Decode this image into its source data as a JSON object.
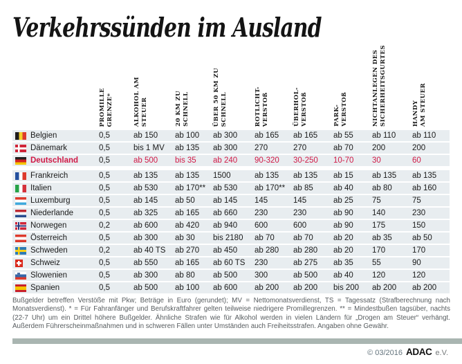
{
  "title": "Verkehrssünden im Ausland",
  "chart_data": {
    "type": "table",
    "columns": [
      [
        "PROMILLE",
        "GRENZE*"
      ],
      [
        "ALKOHOL AM",
        "STEUER"
      ],
      [
        "20 KM ZU",
        "SCHNELL"
      ],
      [
        "ÜBER 50 KM ZU",
        "SCHNELL"
      ],
      [
        "ROTLICHT-",
        "VERSTOß"
      ],
      [
        "ÜBERHOL-",
        "VERSTOß"
      ],
      [
        "PARK-",
        "VERSTOß"
      ],
      [
        "NICHTANLEGEN DES",
        "SICHERHEITSGURTES"
      ],
      [
        "HANDY",
        "AM STEUER"
      ]
    ],
    "rows": [
      {
        "country": "Belgien",
        "flag": "be",
        "highlight": false,
        "values": [
          "0,5",
          "ab 150",
          "ab 100",
          "ab 300",
          "ab 165",
          "ab 165",
          "ab 55",
          "ab 110",
          "ab 110"
        ]
      },
      {
        "country": "Dänemark",
        "flag": "dk",
        "highlight": false,
        "values": [
          "0,5",
          "bis 1 MV",
          "ab 135",
          "ab 300",
          "270",
          "270",
          "ab 70",
          "200",
          "200"
        ]
      },
      {
        "country": "Deutschland",
        "flag": "de",
        "highlight": true,
        "values": [
          "0,5",
          "ab 500",
          "bis 35",
          "ab 240",
          "90-320",
          "30-250",
          "10-70",
          "30",
          "60"
        ]
      },
      {
        "country": "Frankreich",
        "flag": "fr",
        "highlight": false,
        "values": [
          "0,5",
          "ab 135",
          "ab 135",
          "1500",
          "ab 135",
          "ab 135",
          "ab 15",
          "ab 135",
          "ab 135"
        ]
      },
      {
        "country": "Italien",
        "flag": "it",
        "highlight": false,
        "values": [
          "0,5",
          "ab 530",
          "ab 170**",
          "ab 530",
          "ab 170**",
          "ab 85",
          "ab 40",
          "ab 80",
          "ab 160"
        ]
      },
      {
        "country": "Luxemburg",
        "flag": "lu",
        "highlight": false,
        "values": [
          "0,5",
          "ab 145",
          "ab 50",
          "ab 145",
          "145",
          "145",
          "ab 25",
          "75",
          "75"
        ]
      },
      {
        "country": "Niederlande",
        "flag": "nl",
        "highlight": false,
        "values": [
          "0,5",
          "ab 325",
          "ab 165",
          "ab 660",
          "230",
          "230",
          "ab 90",
          "140",
          "230"
        ]
      },
      {
        "country": "Norwegen",
        "flag": "no",
        "highlight": false,
        "values": [
          "0,2",
          "ab 600",
          "ab 420",
          "ab 940",
          "600",
          "600",
          "ab 90",
          "175",
          "150"
        ]
      },
      {
        "country": "Österreich",
        "flag": "at",
        "highlight": false,
        "values": [
          "0,5",
          "ab 300",
          "ab 30",
          "bis 2180",
          "ab 70",
          "ab 70",
          "ab 20",
          "ab 35",
          "ab 50"
        ]
      },
      {
        "country": "Schweden",
        "flag": "se",
        "highlight": false,
        "values": [
          "0,2",
          "ab 40 TS",
          "ab 270",
          "ab 450",
          "ab 280",
          "ab 280",
          "ab 20",
          "170",
          "170"
        ]
      },
      {
        "country": "Schweiz",
        "flag": "ch",
        "highlight": false,
        "values": [
          "0,5",
          "ab 550",
          "ab 165",
          "ab 60 TS",
          "230",
          "ab 275",
          "ab 35",
          "55",
          "90"
        ]
      },
      {
        "country": "Slowenien",
        "flag": "si",
        "highlight": false,
        "values": [
          "0,5",
          "ab 300",
          "ab 80",
          "ab 500",
          "300",
          "ab 500",
          "ab 40",
          "120",
          "120"
        ]
      },
      {
        "country": "Spanien",
        "flag": "es",
        "highlight": false,
        "values": [
          "0,5",
          "ab 500",
          "ab 100",
          "ab 600",
          "ab 200",
          "ab 200",
          "bis 200",
          "ab 200",
          "ab 200"
        ]
      }
    ]
  },
  "footnote": "Bußgelder betreffen Verstöße mit Pkw; Beträge in Euro (gerundet); MV = Nettomonatsverdienst, TS = Tagessatz (Strafberechnung nach Monatsverdienst). * = Für Fahranfänger und Berufskraftfahrer gelten teilweise niedrigere Promillegrenzen. ** = Mindestbußen tagsüber, nachts (22-7 Uhr) um ein Drittel höhere Bußgelder. Ähnliche Strafen wie für Alkohol werden in vielen Ländern für „Drogen am Steuer“ verhängt. Außerdem Führerscheinmaßnahmen und in schweren Fällen unter Umständen auch Freiheitsstrafen. Angaben ohne Gewähr.",
  "footer": {
    "copyright": "© 03/2016",
    "brand": "ADAC",
    "suffix": "e.V."
  },
  "colors": {
    "highlight_red": "#d01946",
    "row_bg": "#e8edf0",
    "footer_bar": "#a9b5b1"
  }
}
